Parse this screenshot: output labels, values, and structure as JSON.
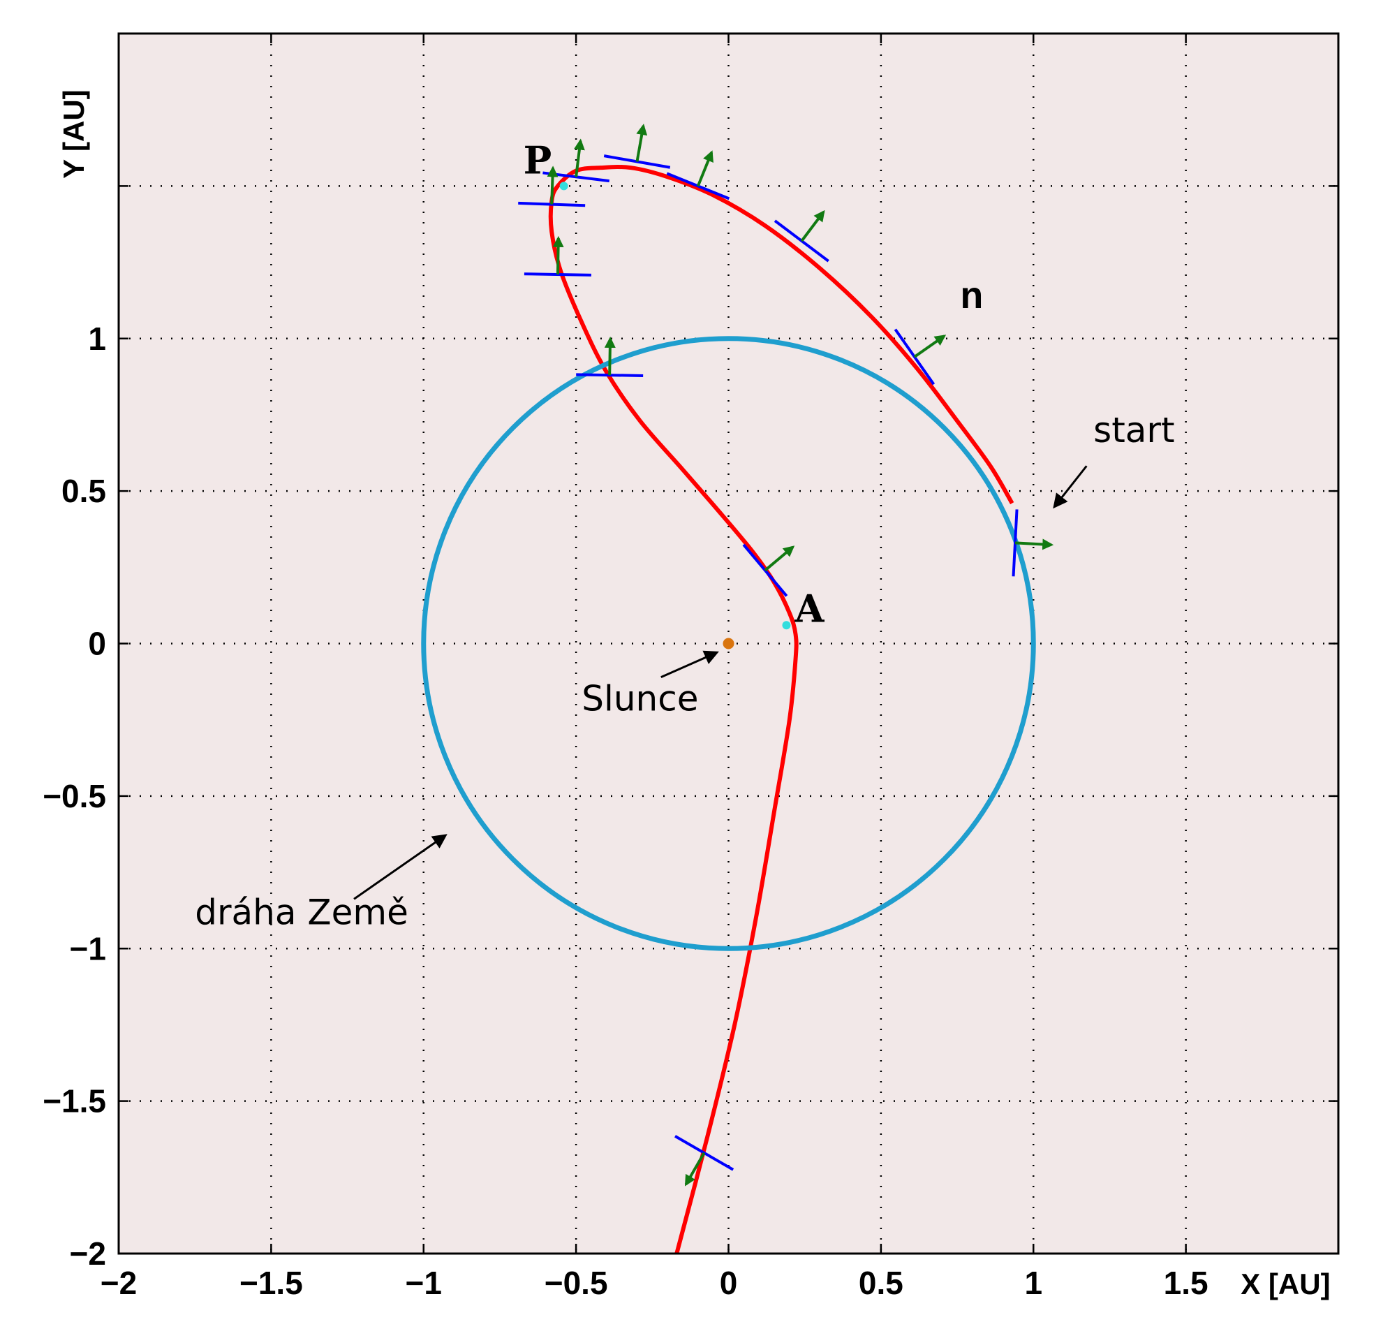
{
  "chart_data": {
    "type": "line",
    "xlabel": "X  [AU]",
    "ylabel": "Y  [AU]",
    "xlim": [
      -2,
      2
    ],
    "ylim": [
      -2,
      2
    ],
    "grid": true,
    "xticks": [
      -2,
      -1.5,
      -1,
      -0.5,
      0,
      0.5,
      1,
      1.5
    ],
    "xtick_labels": [
      "−2",
      "−1.5",
      "−1",
      "−0.5",
      "0",
      "0.5",
      "1",
      "1.5"
    ],
    "yticks": [
      -2,
      -1.5,
      -1,
      -0.5,
      0,
      0.5,
      1,
      1.5
    ],
    "yticks_labeled": [
      -2,
      -1.5,
      -1,
      -0.5,
      0,
      0.5,
      1
    ],
    "ytick_labels": [
      "−2",
      "−1.5",
      "−1",
      "−0.5",
      "0",
      "0.5",
      "1"
    ],
    "colors": {
      "background": "#f2e8e8",
      "trajectory": "#ff0000",
      "earth_orbit": "#1f9ece",
      "sun": "#d9740e",
      "sail_normal_bar": "#0000ff",
      "sail_arrow": "#127a12",
      "marker": "#33dddd"
    },
    "series": [
      {
        "role": "spacecraft-trajectory",
        "x": [
          -0.17,
          -0.07,
          0.02,
          0.09,
          0.15,
          0.2,
          0.22,
          0.22,
          0.2,
          0.15,
          0.08,
          -0.02,
          -0.15,
          -0.29,
          -0.4,
          -0.48,
          -0.55,
          -0.58,
          -0.58,
          -0.56,
          -0.5,
          -0.42,
          -0.32,
          -0.2,
          -0.05,
          0.12,
          0.3,
          0.47,
          0.62,
          0.75,
          0.86,
          0.93
        ],
        "y": [
          -2.0,
          -1.62,
          -1.25,
          -0.9,
          -0.55,
          -0.25,
          -0.05,
          0.03,
          0.1,
          0.2,
          0.3,
          0.42,
          0.57,
          0.73,
          0.89,
          1.05,
          1.22,
          1.35,
          1.45,
          1.5,
          1.55,
          1.56,
          1.56,
          1.53,
          1.47,
          1.37,
          1.23,
          1.07,
          0.9,
          0.73,
          0.58,
          0.46
        ]
      },
      {
        "role": "earth-orbit",
        "shape": "circle",
        "center": [
          0,
          0
        ],
        "radius": 1.0
      }
    ],
    "sun": {
      "x": 0,
      "y": 0
    },
    "markers": [
      {
        "label": "P",
        "x": -0.54,
        "y": 1.5
      },
      {
        "label": "A",
        "x": 0.19,
        "y": 0.06
      }
    ],
    "sail_glyphs": [
      {
        "x": 0.94,
        "y": 0.33,
        "normal_deg": -3,
        "has_arrow": true
      },
      {
        "x": 0.61,
        "y": 0.94,
        "normal_deg": 35,
        "has_arrow": true
      },
      {
        "x": 0.24,
        "y": 1.32,
        "normal_deg": 53,
        "has_arrow": true
      },
      {
        "x": -0.1,
        "y": 1.5,
        "normal_deg": 68,
        "has_arrow": true
      },
      {
        "x": -0.3,
        "y": 1.58,
        "normal_deg": 80,
        "has_arrow": true
      },
      {
        "x": -0.5,
        "y": 1.53,
        "normal_deg": 83,
        "has_arrow": true
      },
      {
        "x": -0.58,
        "y": 1.44,
        "normal_deg": 88,
        "has_arrow": true
      },
      {
        "x": -0.56,
        "y": 1.21,
        "normal_deg": 89,
        "has_arrow": true
      },
      {
        "x": -0.39,
        "y": 0.88,
        "normal_deg": 89,
        "has_arrow": true
      },
      {
        "x": 0.12,
        "y": 0.24,
        "normal_deg": 40,
        "has_arrow": true
      },
      {
        "x": -0.08,
        "y": -1.67,
        "normal_deg": -120,
        "has_arrow": true
      }
    ],
    "annotations": [
      {
        "text": "start",
        "x": 1.33,
        "y": 0.66,
        "arrow_to": [
          1.07,
          0.45
        ]
      },
      {
        "text": "n",
        "x": 0.76,
        "y": 1.1
      },
      {
        "text": "Slunce",
        "x": -0.29,
        "y": -0.22,
        "arrow_to": [
          -0.04,
          -0.03
        ]
      },
      {
        "text": "dráha Země",
        "x": -1.4,
        "y": -0.92,
        "arrow_to": [
          -0.93,
          -0.63
        ]
      }
    ]
  }
}
